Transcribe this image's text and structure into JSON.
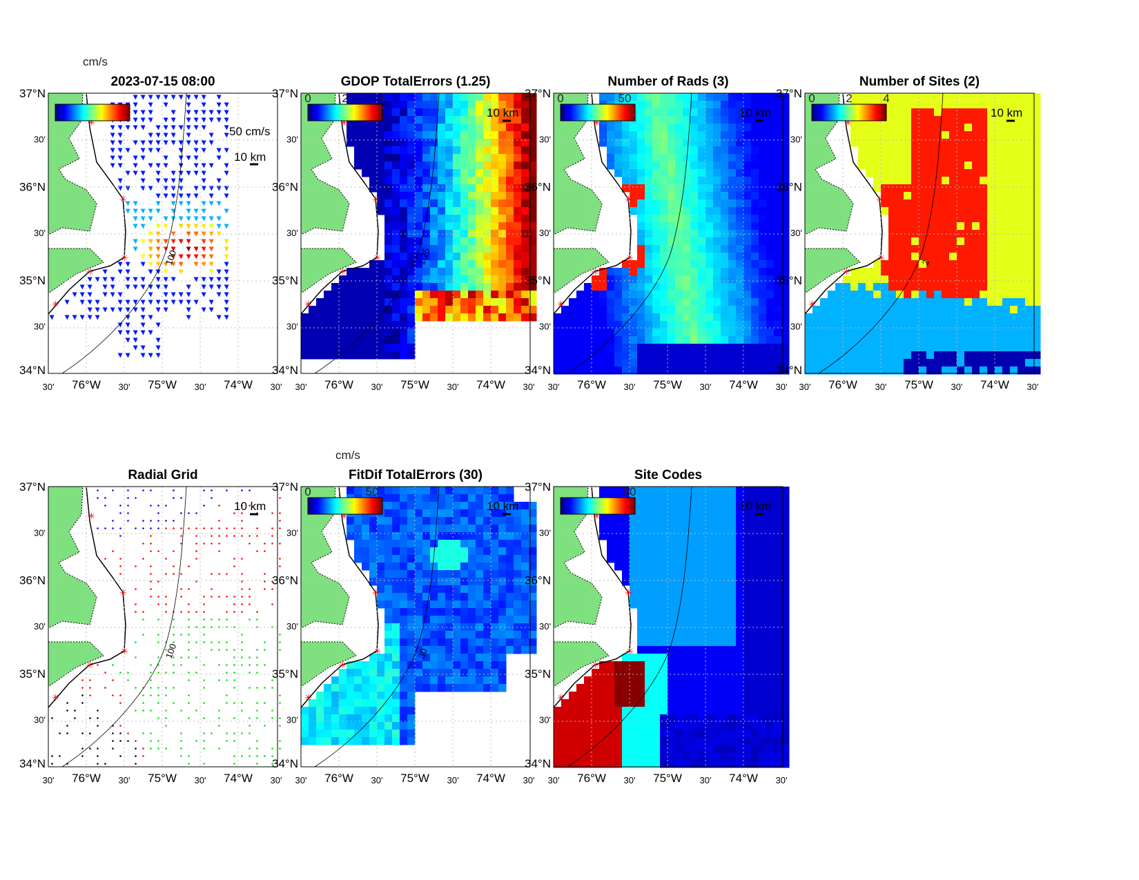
{
  "figure": {
    "panels": [
      {
        "id": "totals",
        "title": "2023-07-15 08:00",
        "colorbar_unit": "cm/s",
        "colorbar_ticks": [],
        "scale_label": "50 cm/s",
        "km_label": "10 km",
        "contour_label": "100",
        "field": "vectors"
      },
      {
        "id": "gdop",
        "title": "GDOP TotalErrors (1.25)",
        "colorbar_ticks": [
          "0",
          "2",
          "4"
        ],
        "km_label": "10 km",
        "contour_label": "1.25",
        "field": "gdop"
      },
      {
        "id": "nrads",
        "title": "Number of Rads (3)",
        "colorbar_ticks": [
          "0",
          "50"
        ],
        "km_label": "10 km",
        "field": "nrads"
      },
      {
        "id": "nsites",
        "title": "Number of Sites (2)",
        "colorbar_ticks": [
          "0",
          "2",
          "4"
        ],
        "km_label": "10 km",
        "contour_label": "2",
        "field": "nsites"
      },
      {
        "id": "radial",
        "title": "Radial Grid",
        "km_label": "10 km",
        "contour_label": "100",
        "field": "radial"
      },
      {
        "id": "fitdif",
        "title": "FitDif TotalErrors (30)",
        "colorbar_unit": "cm/s",
        "colorbar_ticks": [
          "0",
          "50"
        ],
        "km_label": "10 km",
        "contour_label": "30",
        "field": "fitdif"
      },
      {
        "id": "sitecodes",
        "title": "Site Codes",
        "colorbar_ticks": [
          "50"
        ],
        "km_label": "10 km",
        "field": "sitecodes"
      }
    ],
    "lat_ticks": [
      "37°N",
      "30'",
      "36°N",
      "30'",
      "35°N",
      "30'",
      "34°N"
    ],
    "lon_ticks": [
      "30'",
      "76°W",
      "30'",
      "75°W",
      "30'",
      "74°W",
      "30'"
    ],
    "colors": {
      "land": "#7fe07f",
      "site_marker": "#ff0000",
      "radial_sites": [
        "#0000ff",
        "#ff0000",
        "#00dd00",
        "#ff0000",
        "#000000"
      ]
    }
  }
}
